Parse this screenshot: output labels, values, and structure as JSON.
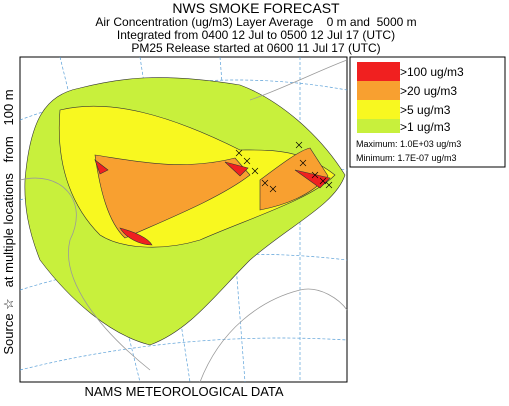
{
  "header": {
    "title": "NWS SMOKE FORECAST",
    "line1": "Air Concentration (ug/m3) Layer Average    0 m and  5000 m",
    "line2": "Integrated from 0400 12 Jul to 0500 12 Jul 17 (UTC)",
    "line3": "PM25 Release started at 0600 11 Jul 17 (UTC)"
  },
  "legend": {
    "items": [
      ">100 ug/m3",
      ">20 ug/m3",
      ">5 ug/m3",
      ">1 ug/m3"
    ],
    "maximum": "Maximum: 1.0E+03 ug/m3",
    "minimum": "Minimum: 1.7E-07 ug/m3"
  },
  "side_label": "Source ☆   at multiple locations   from   100 m",
  "footer": "NAMS METEOROLOGICAL DATA"
}
